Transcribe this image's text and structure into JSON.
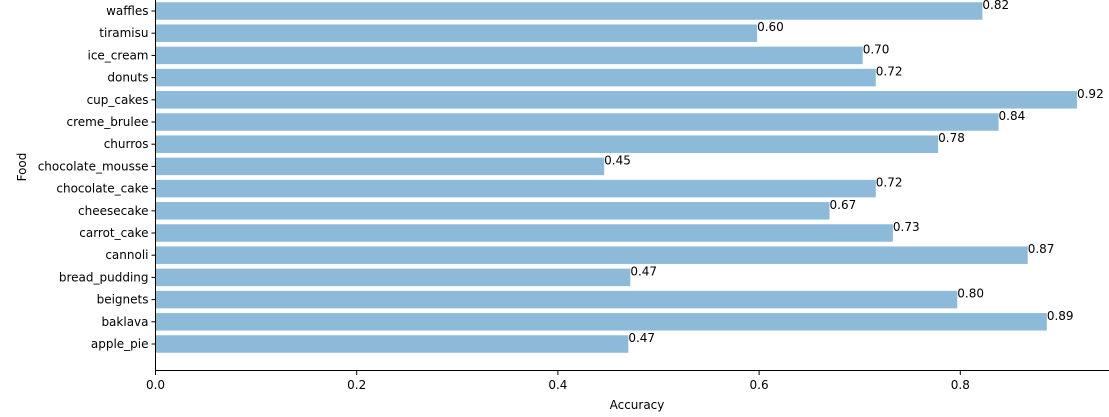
{
  "chart_data": {
    "type": "bar",
    "orientation": "horizontal",
    "title": "",
    "xlabel": "Accuracy",
    "ylabel": "Food",
    "xlim": [
      0,
      0.946
    ],
    "xticks": [
      0.0,
      0.2,
      0.4,
      0.6,
      0.8
    ],
    "xtick_labels": [
      "0.0",
      "0.2",
      "0.4",
      "0.6",
      "0.8"
    ],
    "grid": false,
    "legend": null,
    "bar_color": "#8ebad9",
    "categories": [
      "apple_pie",
      "baklava",
      "beignets",
      "bread_pudding",
      "cannoli",
      "carrot_cake",
      "cheesecake",
      "chocolate_cake",
      "chocolate_mousse",
      "churros",
      "creme_brulee",
      "cup_cakes",
      "donuts",
      "ice_cream",
      "tiramisu",
      "waffles"
    ],
    "values": [
      0.47,
      0.886,
      0.797,
      0.472,
      0.867,
      0.733,
      0.67,
      0.716,
      0.446,
      0.778,
      0.838,
      0.916,
      0.716,
      0.703,
      0.598,
      0.822
    ],
    "value_labels": [
      "0.47",
      "0.89",
      "0.80",
      "0.47",
      "0.87",
      "0.73",
      "0.67",
      "0.72",
      "0.45",
      "0.78",
      "0.84",
      "0.92",
      "0.72",
      "0.70",
      "0.60",
      "0.82"
    ]
  }
}
